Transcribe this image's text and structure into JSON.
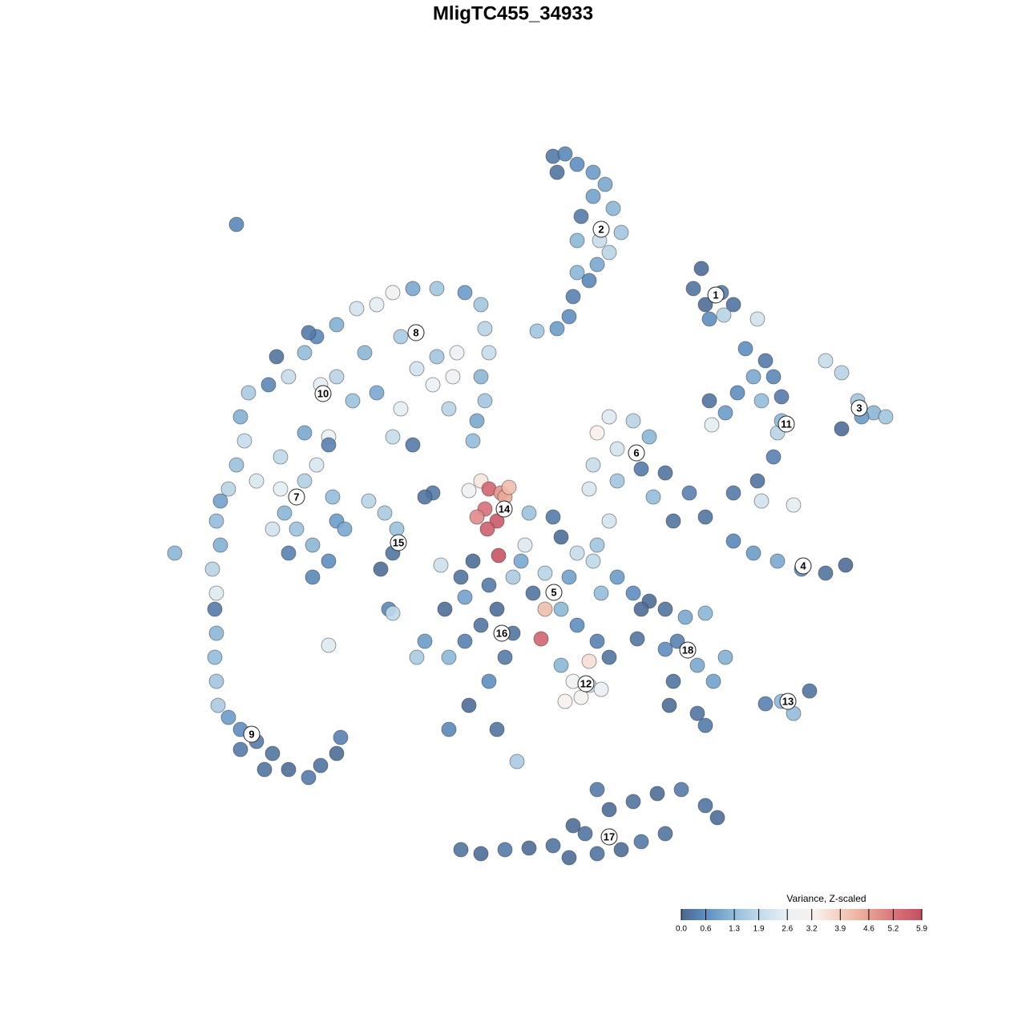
{
  "chart_data": {
    "type": "scatter",
    "title": "MligTC455_34933",
    "xlim": [
      -64,
      64
    ],
    "ylim": [
      -64,
      64
    ],
    "x": [
      5.0,
      6.5,
      8.0,
      10.0,
      11.5,
      12.5,
      13.5,
      12.0,
      10.5,
      9.5,
      8.0,
      7.5,
      7.0,
      5.5,
      3.0,
      8.0,
      8.5,
      10.0,
      5.5,
      10.8,
      23.5,
      22.5,
      24.0,
      26.0,
      27.5,
      24.5,
      26.3,
      30.5,
      39.0,
      41.0,
      43.0,
      45.0,
      46.5,
      41.0,
      43.5,
      29.0,
      31.5,
      32.5,
      30.0,
      28.0,
      24.5,
      26.5,
      31.0,
      33.5,
      33.0,
      32.5,
      30.5,
      27.5,
      24.8,
      33.5,
      22.0,
      24.0,
      27.5,
      30.0,
      33.0,
      36.0,
      39.0,
      41.5,
      20.0,
      31.0,
      35.0,
      12.0,
      10.5,
      15.0,
      17.0,
      10.0,
      13.0,
      16.0,
      19.0,
      17.5,
      9.5,
      13.0,
      -4.0,
      -3.0,
      -1.5,
      -3.5,
      -2.0,
      -1.0,
      -3.2,
      -5.5,
      -0.5,
      -1.8,
      -4.5,
      2.0,
      5.0,
      6.0,
      8.0,
      10.5,
      12.0,
      1.0,
      4.0,
      7.0,
      2.5,
      6.0,
      8.0,
      4.0,
      11.0,
      13.0,
      15.0,
      1.5,
      0.0,
      3.5,
      9.5,
      10.0,
      -5.0,
      -6.5,
      -3.0,
      -2.0,
      -4.0,
      -6.0,
      -8.5,
      -8.0,
      -11.0,
      -12.0,
      0.0,
      -1.0,
      -3.0,
      -5.5,
      -8.0,
      -2.0,
      0.5,
      -10.0,
      -11.0,
      -6.0,
      6.0,
      7.5,
      9.5,
      11.0,
      6.5,
      8.5,
      12.0,
      10.5,
      17.0,
      19.0,
      21.5,
      24.0,
      20.5,
      19.0,
      23.0,
      26.5,
      25.0,
      20.0,
      19.5,
      23.0,
      24.0,
      15.5,
      16.0,
      31.5,
      33.5,
      35.0,
      37.0,
      -18.0,
      -16.0,
      -14.5,
      -15.0,
      -16.5,
      -15.5,
      -15.0,
      -9.0,
      -23.0,
      -15.0,
      -12.5,
      -9.5,
      -6.0,
      -4.0,
      -3.5,
      -3.0,
      -4.0,
      -3.5,
      -4.5,
      -5.0,
      -8.0,
      -10.0,
      -12.0,
      -14.0,
      -17.0,
      -19.5,
      -22.0,
      -24.5,
      -26.0,
      -28.0,
      -30.5,
      -33.0,
      -34.0,
      -33.5,
      -34.5,
      -35.5,
      -36.5,
      -32.0,
      -29.0,
      -26.0,
      -23.0,
      -20.0,
      -17.0,
      -14.0,
      -9.5,
      -7.0,
      -7.5,
      -18.5,
      -22.0,
      -24.0,
      -29.0,
      -26.0,
      -24.5,
      -28.5,
      -30.0,
      -27.0,
      -25.0,
      -23.0,
      -25.0,
      -22.0,
      -21.0,
      -28.0,
      -22.5,
      -15.0,
      -12.5,
      -23.0,
      -25.5,
      -29.5,
      -37.0,
      -36.5,
      -37.5,
      -37.0,
      -37.2,
      -37.0,
      -37.2,
      -37.0,
      -36.8,
      -35.5,
      -34.0,
      -32.0,
      -30.0,
      -28.0,
      -25.5,
      -24.0,
      -22.0,
      -21.5,
      -34.0,
      -31.0,
      -42.2,
      -34.5,
      -6.5,
      -4.0,
      -1.0,
      2.0,
      5.0,
      7.0,
      9.0,
      12.0,
      10.5,
      15.0,
      18.0,
      21.0,
      24.0,
      25.5,
      19.0,
      16.0,
      13.5,
      10.5,
      7.5
    ],
    "y": [
      44.5,
      44.8,
      43.5,
      42.5,
      41.0,
      38.0,
      35.0,
      32.5,
      31.0,
      29.0,
      30.0,
      27.0,
      24.5,
      23.0,
      22.7,
      34.0,
      37.0,
      39.5,
      42.5,
      34.0,
      30.5,
      28.0,
      26.0,
      27.5,
      26.0,
      24.2,
      24.7,
      24.2,
      19.0,
      17.5,
      14.0,
      12.5,
      12.0,
      10.5,
      12.0,
      20.5,
      19.0,
      17.0,
      17.0,
      15.0,
      14.0,
      12.5,
      14.0,
      14.5,
      10.0,
      7.0,
      4.0,
      2.5,
      11.0,
      11.5,
      2.5,
      -0.5,
      -3.5,
      -5.0,
      -6.0,
      -7.0,
      -7.5,
      -6.5,
      -1.0,
      1.5,
      1.0,
      12.0,
      10.0,
      11.5,
      9.5,
      6.0,
      4.0,
      5.5,
      5.0,
      2.0,
      3.0,
      8.0,
      4.0,
      3.0,
      2.5,
      0.5,
      -1.0,
      2.0,
      -2.0,
      2.8,
      3.2,
      -5.3,
      -0.5,
      0.0,
      -0.5,
      -3.0,
      -5.0,
      -4.0,
      -1.0,
      -6.0,
      -7.5,
      -8.0,
      -10.0,
      -12.0,
      -14.0,
      -12.0,
      -10.0,
      -8.0,
      -10.0,
      -4.0,
      -8.0,
      -15.7,
      -18.5,
      -6.0,
      -6.0,
      -8.0,
      -9.0,
      -12.0,
      -14.0,
      -16.0,
      -12.0,
      -18.0,
      -16.0,
      -18.0,
      -15.0,
      -18.0,
      -21.0,
      -24.0,
      -27.0,
      -27.0,
      -31.0,
      2.5,
      2.0,
      -10.5,
      -19.0,
      -21.0,
      -21.5,
      -22.0,
      -23.5,
      -23.0,
      -18.0,
      -16.0,
      -11.0,
      -12.0,
      -13.0,
      -12.5,
      -16.0,
      -17.0,
      -19.0,
      -18.0,
      -21.0,
      -21.0,
      -24.0,
      -25.0,
      -26.5,
      -15.7,
      -12.0,
      -23.8,
      -23.5,
      -25.0,
      -22.2,
      1.5,
      0.0,
      -2.0,
      -5.0,
      -7.0,
      -12.0,
      -12.5,
      -6.5,
      -16.5,
      27.5,
      28.0,
      28.0,
      27.5,
      26.0,
      23.0,
      20.0,
      17.0,
      14.0,
      11.5,
      9.0,
      13.0,
      16.0,
      18.0,
      22.0,
      26.0,
      25.5,
      23.5,
      22.0,
      20.0,
      17.0,
      16.0,
      15.0,
      12.0,
      9.0,
      6.0,
      3.0,
      1.5,
      4.0,
      7.0,
      10.0,
      9.5,
      14.0,
      15.0,
      13.0,
      19.5,
      20.0,
      17.0,
      20.0,
      17.0,
      16.0,
      3.0,
      4.0,
      6.0,
      0.0,
      -2.0,
      -2.0,
      -4.0,
      -6.0,
      -8.0,
      -1.0,
      -2.0,
      -5.0,
      2.0,
      9.5,
      8.5,
      8.5,
      22.5,
      19.5,
      -1.0,
      -4.0,
      -7.0,
      -10.0,
      -12.0,
      -15.0,
      -18.0,
      -21.0,
      -24.0,
      -25.5,
      -27.0,
      -28.5,
      -30.0,
      -32.0,
      -33.0,
      -31.5,
      -30.0,
      -28.0,
      -29.5,
      -32.0,
      -5.0,
      36.0,
      -42.0,
      -42.5,
      -42.0,
      -41.8,
      -41.5,
      -43.0,
      -40.0,
      -37.0,
      -34.5,
      -36.0,
      -35.0,
      -34.5,
      -36.5,
      -38.0,
      -40.0,
      -41.0,
      -42.0,
      -42.5,
      -39.0
    ],
    "values": [
      0.3,
      0.5,
      0.6,
      0.8,
      1.0,
      1.2,
      1.5,
      1.8,
      1.0,
      0.5,
      1.2,
      0.4,
      0.6,
      0.8,
      1.5,
      1.2,
      0.3,
      0.9,
      0.2,
      2.0,
      0.1,
      0.2,
      0.1,
      0.3,
      0.2,
      0.6,
      1.8,
      2.2,
      2.0,
      1.8,
      1.5,
      1.2,
      1.5,
      0.1,
      0.8,
      0.6,
      0.3,
      0.5,
      1.0,
      0.6,
      0.2,
      0.8,
      1.3,
      0.3,
      1.8,
      0.4,
      0.2,
      0.3,
      2.5,
      1.2,
      0.4,
      0.2,
      0.5,
      0.8,
      1.0,
      0.6,
      0.2,
      0.1,
      0.2,
      2.2,
      2.5,
      2.4,
      3.3,
      1.8,
      1.2,
      2.0,
      1.5,
      0.3,
      0.2,
      1.3,
      2.3,
      2.2,
      3.5,
      5.5,
      4.8,
      5.3,
      5.7,
      4.5,
      5.6,
      2.8,
      4.2,
      5.8,
      4.9,
      1.4,
      0.3,
      0.1,
      2.0,
      1.5,
      2.2,
      1.0,
      1.8,
      0.9,
      0.2,
      1.2,
      0.6,
      4.2,
      1.3,
      0.8,
      0.6,
      2.4,
      1.6,
      5.5,
      3.6,
      1.9,
      0.1,
      0.2,
      0.3,
      0.1,
      0.2,
      0.4,
      0.1,
      1.2,
      0.8,
      1.6,
      0.2,
      0.3,
      0.6,
      0.1,
      0.5,
      0.2,
      1.6,
      0.3,
      0.2,
      0.9,
      1.2,
      2.9,
      2.2,
      2.6,
      3.3,
      3.1,
      0.2,
      0.4,
      0.1,
      0.2,
      1.0,
      1.2,
      0.4,
      0.6,
      1.0,
      1.1,
      0.9,
      0.2,
      0.1,
      0.2,
      0.3,
      0.2,
      0.1,
      0.4,
      1.2,
      1.3,
      0.2,
      1.8,
      1.6,
      1.4,
      0.2,
      0.1,
      0.5,
      1.9,
      2.1,
      2.4,
      2.9,
      1.0,
      1.5,
      0.8,
      1.5,
      1.8,
      2.0,
      1.2,
      1.5,
      1.0,
      1.3,
      1.8,
      2.6,
      2.2,
      1.6,
      2.5,
      2.2,
      1.1,
      0.5,
      1.3,
      2.0,
      0.5,
      1.6,
      1.1,
      2.0,
      1.4,
      1.8,
      0.9,
      2.3,
      1.9,
      1.0,
      2.6,
      1.4,
      1.0,
      2.5,
      1.5,
      2.7,
      2.8,
      1.2,
      1.8,
      2.5,
      2.5,
      1.7,
      2.3,
      1.2,
      2.2,
      1.4,
      1.2,
      0.6,
      0.5,
      0.8,
      1.0,
      0.4,
      1.3,
      2.0,
      0.3,
      0.4,
      0.3,
      0.2,
      1.3,
      1.1,
      1.8,
      2.4,
      0.3,
      1.2,
      1.3,
      1.5,
      1.6,
      0.8,
      0.6,
      0.3,
      0.2,
      0.1,
      0.3,
      0.2,
      0.1,
      0.4,
      0.3,
      0.2,
      1.2,
      0.5,
      0.2,
      0.1,
      0.3,
      0.1,
      0.2,
      0.1,
      0.2,
      0.1,
      0.3,
      0.2,
      0.1,
      0.3,
      0.2,
      0.1,
      0.2,
      0.3,
      0.1,
      0.2,
      0.1
    ],
    "clusters": [
      {
        "label": "1",
        "x": 25.3,
        "y": 27.2
      },
      {
        "label": "2",
        "x": 11.0,
        "y": 35.4
      },
      {
        "label": "3",
        "x": 43.2,
        "y": 13.1
      },
      {
        "label": "4",
        "x": 36.2,
        "y": -6.6
      },
      {
        "label": "5",
        "x": 5.1,
        "y": -9.9
      },
      {
        "label": "6",
        "x": 15.4,
        "y": 7.5
      },
      {
        "label": "7",
        "x": -27.0,
        "y": 2.0
      },
      {
        "label": "8",
        "x": -12.1,
        "y": 22.5
      },
      {
        "label": "9",
        "x": -32.6,
        "y": -27.6
      },
      {
        "label": "10",
        "x": -23.7,
        "y": 14.9
      },
      {
        "label": "11",
        "x": 34.1,
        "y": 11.1
      },
      {
        "label": "12",
        "x": 9.1,
        "y": -21.3
      },
      {
        "label": "13",
        "x": 34.3,
        "y": -23.5
      },
      {
        "label": "14",
        "x": -1.1,
        "y": 0.5
      },
      {
        "label": "15",
        "x": -14.3,
        "y": -3.7
      },
      {
        "label": "16",
        "x": -1.4,
        "y": -15.0
      },
      {
        "label": "17",
        "x": 12.0,
        "y": -40.4
      },
      {
        "label": "18",
        "x": 21.8,
        "y": -17.1
      }
    ],
    "colorbar_title": "Variance, Z-scaled",
    "clim": [
      0,
      5.9
    ],
    "cticks": [
      {
        "value": 0,
        "label": "0.0"
      },
      0.6,
      1.3,
      1.9,
      2.6,
      3.2,
      3.9,
      4.6,
      5.2,
      5.9
    ],
    "colorscale": [
      "#4a6790",
      "#5e92c4",
      "#92bedb",
      "#c3dcea",
      "#eaf1f5",
      "#f8f1ee",
      "#f4cdbb",
      "#e9a291",
      "#d9727a",
      "#c54f5e"
    ]
  }
}
